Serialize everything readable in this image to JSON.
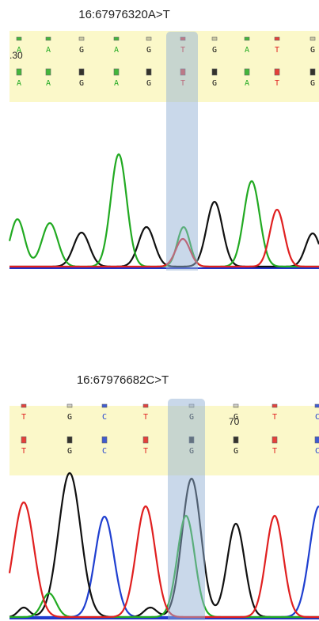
{
  "colors": {
    "A": "#22aa22",
    "C": "#1f3fd0",
    "G": "#111111",
    "T": "#e02020",
    "band": "#fbf8c9",
    "highlight": "#93b1d5"
  },
  "panels": [
    {
      "id": "p1",
      "title": "16:67976320A>T",
      "position_label": ".30",
      "row1": [
        "A",
        "A",
        "G",
        "A",
        "G",
        "T",
        "G",
        "A",
        "T",
        "G"
      ],
      "row2": [
        "A",
        "A",
        "G",
        "A",
        "G",
        "T",
        "G",
        "A",
        "T",
        "G"
      ],
      "highlight_index": 5
    },
    {
      "id": "p2",
      "title": "16:67976682C>T",
      "position_label": "70",
      "row1": [
        "T",
        "G",
        "C",
        "T",
        "G",
        "G",
        "T",
        "C"
      ],
      "row2": [
        "T",
        "G",
        "C",
        "T",
        "G",
        "G",
        "T",
        "C"
      ],
      "highlight_index": 4
    }
  ]
}
